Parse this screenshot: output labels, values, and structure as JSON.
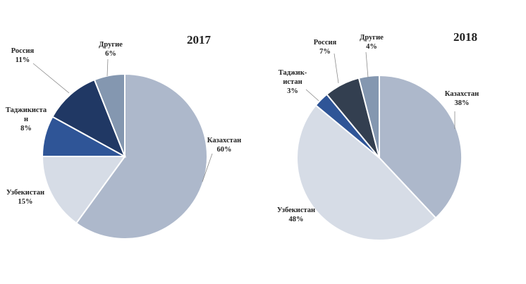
{
  "chart_data": [
    {
      "type": "pie",
      "title": "2017",
      "slices": [
        {
          "label": [
            "Казахстан",
            "60%"
          ],
          "value": 60,
          "color": "#adb8cb"
        },
        {
          "label": [
            "Узбекистан",
            "15%"
          ],
          "value": 15,
          "color": "#d6dce6"
        },
        {
          "label": [
            "Таджикиста",
            "н",
            "8%"
          ],
          "value": 8,
          "color": "#2f5597"
        },
        {
          "label": [
            "Россия",
            "11%"
          ],
          "value": 11,
          "color": "#203864"
        },
        {
          "label": [
            "Другие",
            "6%"
          ],
          "value": 6,
          "color": "#8497b0"
        }
      ]
    },
    {
      "type": "pie",
      "title": "2018",
      "slices": [
        {
          "label": [
            "Казахстан",
            "38%"
          ],
          "value": 38,
          "color": "#adb8cb"
        },
        {
          "label": [
            "Узбекистан",
            "48%"
          ],
          "value": 48,
          "color": "#d6dce6"
        },
        {
          "label": [
            "Таджик-",
            "истан",
            "3%"
          ],
          "value": 3,
          "color": "#2f5597"
        },
        {
          "label": [
            "Россия",
            "7%"
          ],
          "value": 7,
          "color": "#333f50"
        },
        {
          "label": [
            "Другие",
            "4%"
          ],
          "value": 4,
          "color": "#8497b0"
        }
      ]
    }
  ]
}
